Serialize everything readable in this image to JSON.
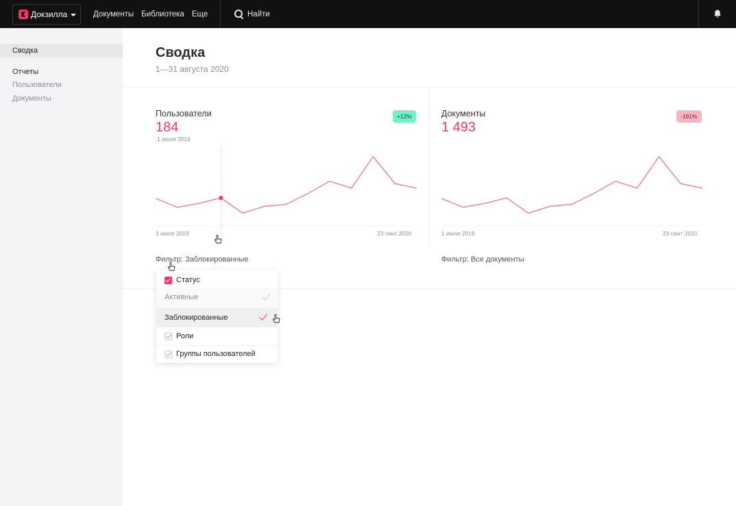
{
  "app": {
    "brand": "Докзилла",
    "nav": [
      "Документы",
      "Библиотека",
      "Еще"
    ],
    "search_label": "Найти"
  },
  "sidebar": {
    "summary": "Сводка",
    "reports_header": "Отчеты",
    "items": [
      "Пользователи",
      "Документы"
    ]
  },
  "page": {
    "title": "Сводка",
    "date_range": "1—31 августа 2020"
  },
  "cards": [
    {
      "label": "Пользователи",
      "value": "184",
      "badge": "+12%",
      "badge_color": "#6ef2c8",
      "hover_date": "1 июля 2019",
      "axis_start": "1 июля 2019",
      "axis_end": "23 сент 2020",
      "filter": "Фильтр: Заблокированные",
      "chart_data": {
        "type": "line",
        "values": [
          56,
          38,
          46,
          57,
          26,
          40,
          44,
          66,
          91,
          77,
          141,
          86,
          77
        ],
        "hover_index": 3,
        "ylim": [
          0,
          160
        ]
      }
    },
    {
      "label": "Документы",
      "value": "1 493",
      "badge": "-191%",
      "badge_color": "#ffb3c1",
      "axis_start": "1 июля 2019",
      "axis_end": "23 сент 2020",
      "filter": "Фильтр: Все документы",
      "chart_data": {
        "type": "line",
        "values": [
          56,
          38,
          46,
          57,
          26,
          40,
          44,
          66,
          91,
          77,
          141,
          86,
          77
        ],
        "ylim": [
          0,
          160
        ]
      }
    }
  ],
  "dropdown": {
    "status_label": "Статус",
    "options": [
      "Активные",
      "Заблокированные"
    ],
    "roles_label": "Роли",
    "groups_label": "Группы пользователей"
  },
  "colors": {
    "accent": "#ff3366",
    "line": "#f47c9a"
  }
}
